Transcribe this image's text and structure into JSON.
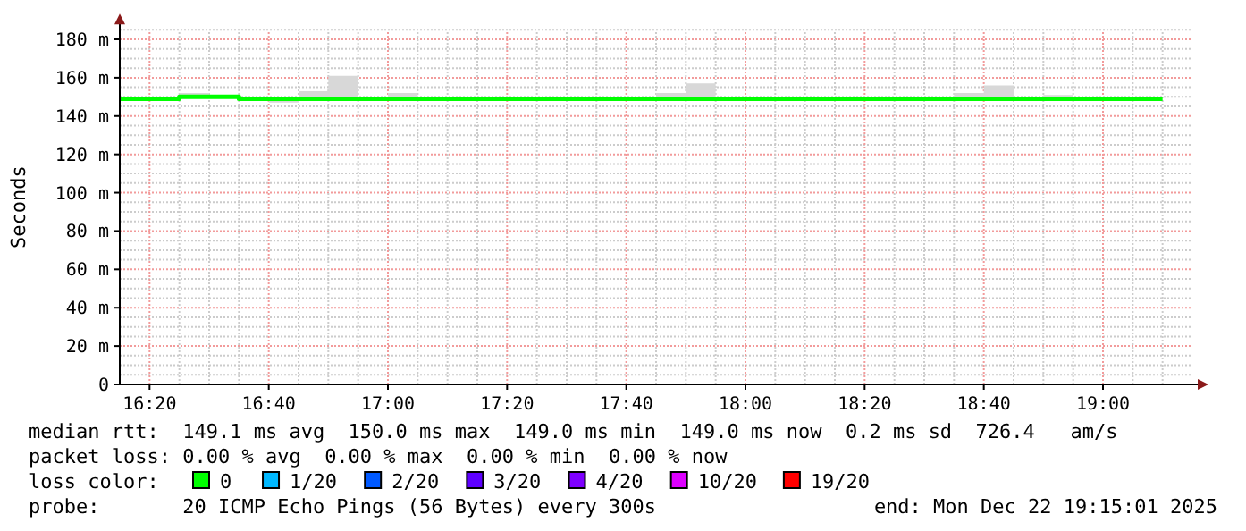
{
  "chart_data": {
    "type": "step",
    "ylabel": "Seconds",
    "legend_title": "loss color:",
    "legend": "bottom",
    "grid": true,
    "x": [
      "2025-12-22T16:15",
      "2025-12-22T16:20",
      "2025-12-22T16:25",
      "2025-12-22T16:30",
      "2025-12-22T16:35",
      "2025-12-22T16:40",
      "2025-12-22T16:45",
      "2025-12-22T16:50",
      "2025-12-22T16:55",
      "2025-12-22T17:00",
      "2025-12-22T17:05",
      "2025-12-22T17:10",
      "2025-12-22T17:15",
      "2025-12-22T17:20",
      "2025-12-22T17:25",
      "2025-12-22T17:30",
      "2025-12-22T17:35",
      "2025-12-22T17:40",
      "2025-12-22T17:45",
      "2025-12-22T17:50",
      "2025-12-22T17:55",
      "2025-12-22T18:00",
      "2025-12-22T18:05",
      "2025-12-22T18:10",
      "2025-12-22T18:15",
      "2025-12-22T18:20",
      "2025-12-22T18:25",
      "2025-12-22T18:30",
      "2025-12-22T18:35",
      "2025-12-22T18:40",
      "2025-12-22T18:45",
      "2025-12-22T18:50",
      "2025-12-22T18:55",
      "2025-12-22T19:00",
      "2025-12-22T19:05",
      "2025-12-22T19:10"
    ],
    "series": [
      {
        "name": "0",
        "color": "#00ff00",
        "values": [
          149,
          149,
          150,
          150,
          149,
          149,
          149,
          149,
          149,
          149,
          149,
          149,
          149,
          149,
          149,
          149,
          149,
          149,
          149,
          149,
          149,
          149,
          149,
          149,
          149,
          149,
          149,
          149,
          149,
          149,
          149,
          149,
          149,
          149,
          149,
          149
        ],
        "lower": [
          149,
          149,
          150,
          150,
          149,
          147,
          149,
          149,
          149,
          149,
          149,
          149,
          149,
          149,
          149,
          149,
          149,
          149,
          149,
          149,
          149,
          149,
          149,
          149,
          149,
          149,
          149,
          149,
          149,
          149,
          149,
          149,
          149,
          149,
          149,
          149
        ],
        "upper": [
          150,
          150,
          152,
          150,
          149,
          149,
          153,
          161,
          150,
          152,
          149,
          149,
          149,
          149,
          149,
          149,
          149,
          149,
          152,
          157,
          149,
          149,
          149,
          149,
          149,
          149,
          150,
          149,
          152,
          156,
          150,
          151,
          149,
          149,
          149,
          149
        ]
      },
      {
        "name": "1/20",
        "color": "#00b8ff",
        "values": [
          null,
          null,
          null,
          null,
          null,
          null,
          null,
          null,
          null,
          null,
          null,
          null,
          null,
          null,
          null,
          null,
          null,
          null,
          null,
          null,
          null,
          null,
          null,
          null,
          null,
          null,
          null,
          null,
          null,
          null,
          null,
          null,
          null,
          null,
          null,
          null
        ]
      },
      {
        "name": "2/20",
        "color": "#0059ff",
        "values": [
          null,
          null,
          null,
          null,
          null,
          null,
          null,
          null,
          null,
          null,
          null,
          null,
          null,
          null,
          null,
          null,
          null,
          null,
          null,
          null,
          null,
          null,
          null,
          null,
          null,
          null,
          null,
          null,
          null,
          null,
          null,
          null,
          null,
          null,
          null,
          null
        ]
      },
      {
        "name": "3/20",
        "color": "#5e00ff",
        "values": [
          null,
          null,
          null,
          null,
          null,
          null,
          null,
          null,
          null,
          null,
          null,
          null,
          null,
          null,
          null,
          null,
          null,
          null,
          null,
          null,
          null,
          null,
          null,
          null,
          null,
          null,
          null,
          null,
          null,
          null,
          null,
          null,
          null,
          null,
          null,
          null
        ]
      },
      {
        "name": "4/20",
        "color": "#7e00ff",
        "values": [
          null,
          null,
          null,
          null,
          null,
          null,
          null,
          null,
          null,
          null,
          null,
          null,
          null,
          null,
          null,
          null,
          null,
          null,
          null,
          null,
          null,
          null,
          null,
          null,
          null,
          null,
          null,
          null,
          null,
          null,
          null,
          null,
          null,
          null,
          null,
          null
        ]
      },
      {
        "name": "10/20",
        "color": "#dd00ff",
        "values": [
          null,
          null,
          null,
          null,
          null,
          null,
          null,
          null,
          null,
          null,
          null,
          null,
          null,
          null,
          null,
          null,
          null,
          null,
          null,
          null,
          null,
          null,
          null,
          null,
          null,
          null,
          null,
          null,
          null,
          null,
          null,
          null,
          null,
          null,
          null,
          null
        ]
      },
      {
        "name": "19/20",
        "color": "#ff0000",
        "values": [
          null,
          null,
          null,
          null,
          null,
          null,
          null,
          null,
          null,
          null,
          null,
          null,
          null,
          null,
          null,
          null,
          null,
          null,
          null,
          null,
          null,
          null,
          null,
          null,
          null,
          null,
          null,
          null,
          null,
          null,
          null,
          null,
          null,
          null,
          null,
          null
        ]
      }
    ],
    "xlim": [
      "2025-12-22T16:15",
      "2025-12-22T19:15"
    ],
    "xticks": [
      {
        "value": "2025-12-22T16:20",
        "label": "16:20"
      },
      {
        "value": "2025-12-22T16:25",
        "label": null
      },
      {
        "value": "2025-12-22T16:30",
        "label": null
      },
      {
        "value": "2025-12-22T16:35",
        "label": null
      },
      {
        "value": "2025-12-22T16:40",
        "label": "16:40"
      },
      {
        "value": "2025-12-22T16:45",
        "label": null
      },
      {
        "value": "2025-12-22T16:50",
        "label": null
      },
      {
        "value": "2025-12-22T16:55",
        "label": null
      },
      {
        "value": "2025-12-22T17:00",
        "label": "17:00"
      },
      {
        "value": "2025-12-22T17:05",
        "label": null
      },
      {
        "value": "2025-12-22T17:10",
        "label": null
      },
      {
        "value": "2025-12-22T17:15",
        "label": null
      },
      {
        "value": "2025-12-22T17:20",
        "label": "17:20"
      },
      {
        "value": "2025-12-22T17:25",
        "label": null
      },
      {
        "value": "2025-12-22T17:30",
        "label": null
      },
      {
        "value": "2025-12-22T17:35",
        "label": null
      },
      {
        "value": "2025-12-22T17:40",
        "label": "17:40"
      },
      {
        "value": "2025-12-22T17:45",
        "label": null
      },
      {
        "value": "2025-12-22T17:50",
        "label": null
      },
      {
        "value": "2025-12-22T17:55",
        "label": null
      },
      {
        "value": "2025-12-22T18:00",
        "label": "18:00"
      },
      {
        "value": "2025-12-22T18:05",
        "label": null
      },
      {
        "value": "2025-12-22T18:10",
        "label": null
      },
      {
        "value": "2025-12-22T18:15",
        "label": null
      },
      {
        "value": "2025-12-22T18:20",
        "label": "18:20"
      },
      {
        "value": "2025-12-22T18:25",
        "label": null
      },
      {
        "value": "2025-12-22T18:30",
        "label": null
      },
      {
        "value": "2025-12-22T18:35",
        "label": null
      },
      {
        "value": "2025-12-22T18:40",
        "label": "18:40"
      },
      {
        "value": "2025-12-22T18:45",
        "label": null
      },
      {
        "value": "2025-12-22T18:50",
        "label": null
      },
      {
        "value": "2025-12-22T18:55",
        "label": null
      },
      {
        "value": "2025-12-22T19:00",
        "label": "19:00"
      },
      {
        "value": "2025-12-22T19:05",
        "label": null
      },
      {
        "value": "2025-12-22T19:10",
        "label": null
      }
    ],
    "ylim": [
      0,
      185
    ],
    "yticks": [
      0,
      {
        "value": 5,
        "label": null
      },
      {
        "value": 10,
        "label": null
      },
      {
        "value": 15,
        "label": null
      },
      {
        "value": 20,
        "label": "20 m"
      },
      {
        "value": 25,
        "label": null
      },
      {
        "value": 30,
        "label": null
      },
      {
        "value": 35,
        "label": null
      },
      {
        "value": 40,
        "label": "40 m"
      },
      {
        "value": 45,
        "label": null
      },
      {
        "value": 50,
        "label": null
      },
      {
        "value": 55,
        "label": null
      },
      {
        "value": 60,
        "label": "60 m"
      },
      {
        "value": 65,
        "label": null
      },
      {
        "value": 70,
        "label": null
      },
      {
        "value": 75,
        "label": null
      },
      {
        "value": 80,
        "label": "80 m"
      },
      {
        "value": 85,
        "label": null
      },
      {
        "value": 90,
        "label": null
      },
      {
        "value": 95,
        "label": null
      },
      {
        "value": 100,
        "label": "100 m"
      },
      {
        "value": 105,
        "label": null
      },
      {
        "value": 110,
        "label": null
      },
      {
        "value": 115,
        "label": null
      },
      {
        "value": 120,
        "label": "120 m"
      },
      {
        "value": 125,
        "label": null
      },
      {
        "value": 130,
        "label": null
      },
      {
        "value": 135,
        "label": null
      },
      {
        "value": 140,
        "label": "140 m"
      },
      {
        "value": 145,
        "label": null
      },
      {
        "value": 150,
        "label": null
      },
      {
        "value": 155,
        "label": null
      },
      {
        "value": 160,
        "label": "160 m"
      },
      {
        "value": 165,
        "label": null
      },
      {
        "value": 170,
        "label": null
      },
      {
        "value": 175,
        "label": null
      },
      {
        "value": 180,
        "label": "180 m"
      },
      {
        "value": 185,
        "label": null
      }
    ],
    "annotations": [
      "median rtt:  149.1 ms avg  150.0 ms max  149.0 ms min  149.0 ms now  0.2 ms sd  726.4   am/s",
      "packet loss: 0.00 % avg  0.00 % max  0.00 % min  0.00 % now",
      "probe:       20 ICMP Echo Pings (56 Bytes) every 300s",
      "end: Mon Dec 22 19:15:01 2025"
    ]
  }
}
